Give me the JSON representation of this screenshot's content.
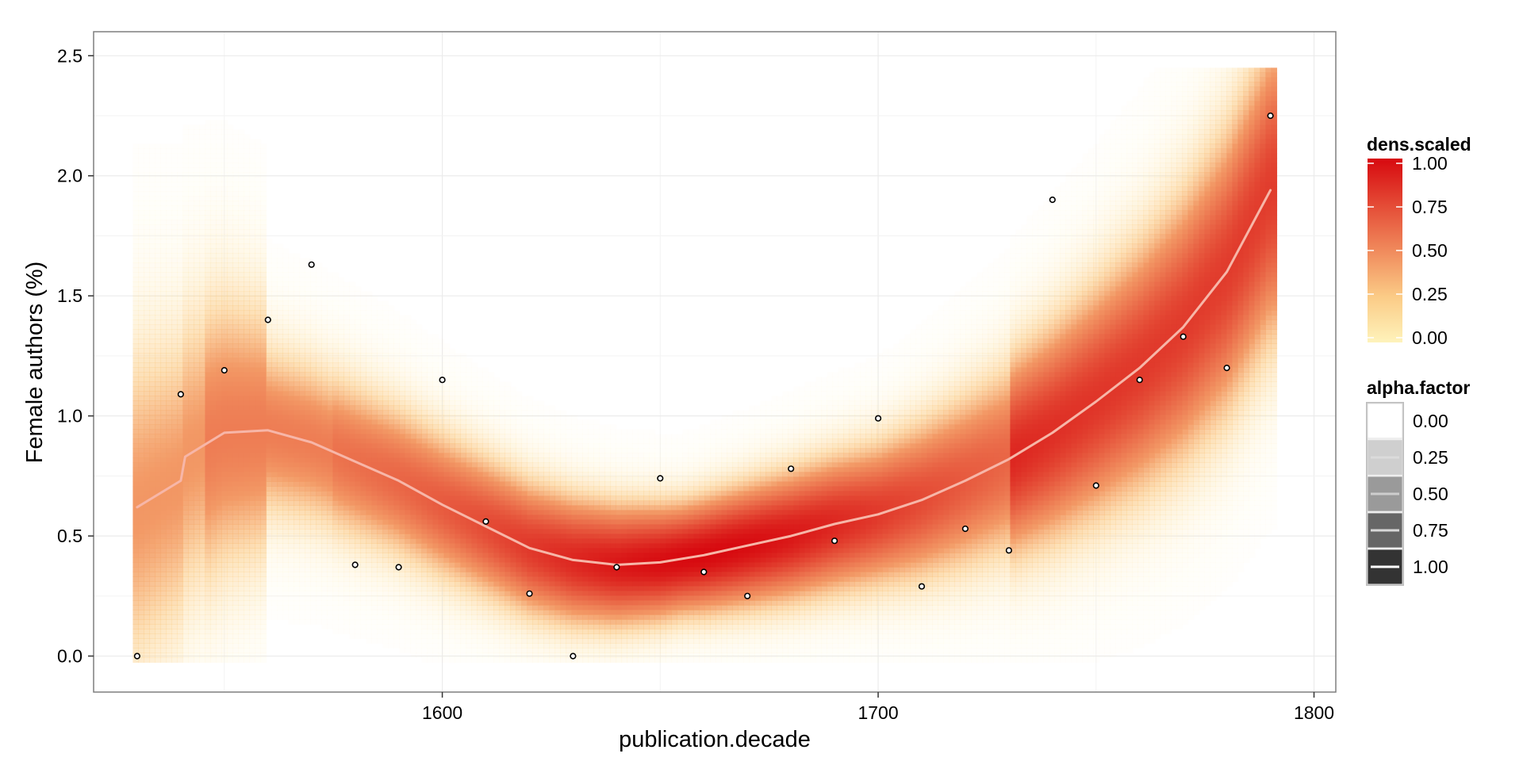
{
  "chart_data": {
    "type": "scatter",
    "title": "",
    "xlabel": "publication.decade",
    "ylabel": "Female authors (%)",
    "xlim": [
      1520,
      1805
    ],
    "ylim": [
      -0.15,
      2.6
    ],
    "xticks": [
      1600,
      1700,
      1800
    ],
    "xtick_labels": [
      "1600",
      "1700",
      "1800"
    ],
    "yticks": [
      0.0,
      0.5,
      1.0,
      1.5,
      2.0,
      2.5
    ],
    "ytick_labels": [
      "0.0",
      "0.5",
      "1.0",
      "1.5",
      "2.0",
      "2.5"
    ],
    "grid": true,
    "points": [
      {
        "x": 1530,
        "y": 0.0
      },
      {
        "x": 1540,
        "y": 1.09
      },
      {
        "x": 1550,
        "y": 1.19
      },
      {
        "x": 1560,
        "y": 1.4
      },
      {
        "x": 1570,
        "y": 1.63
      },
      {
        "x": 1580,
        "y": 0.38
      },
      {
        "x": 1590,
        "y": 0.37
      },
      {
        "x": 1600,
        "y": 1.15
      },
      {
        "x": 1610,
        "y": 0.56
      },
      {
        "x": 1620,
        "y": 0.26
      },
      {
        "x": 1630,
        "y": 0.0
      },
      {
        "x": 1640,
        "y": 0.37
      },
      {
        "x": 1650,
        "y": 0.74
      },
      {
        "x": 1660,
        "y": 0.35
      },
      {
        "x": 1670,
        "y": 0.25
      },
      {
        "x": 1680,
        "y": 0.78
      },
      {
        "x": 1690,
        "y": 0.48
      },
      {
        "x": 1700,
        "y": 0.99
      },
      {
        "x": 1710,
        "y": 0.29
      },
      {
        "x": 1720,
        "y": 0.53
      },
      {
        "x": 1730,
        "y": 0.44
      },
      {
        "x": 1740,
        "y": 1.9
      },
      {
        "x": 1750,
        "y": 0.71
      },
      {
        "x": 1760,
        "y": 1.15
      },
      {
        "x": 1770,
        "y": 1.33
      },
      {
        "x": 1780,
        "y": 1.2
      },
      {
        "x": 1790,
        "y": 2.25
      }
    ],
    "smooth_line": [
      {
        "x": 1530,
        "y": 0.62
      },
      {
        "x": 1540,
        "y": 0.73
      },
      {
        "x": 1541,
        "y": 0.83
      },
      {
        "x": 1550,
        "y": 0.93
      },
      {
        "x": 1560,
        "y": 0.94
      },
      {
        "x": 1570,
        "y": 0.89
      },
      {
        "x": 1580,
        "y": 0.81
      },
      {
        "x": 1590,
        "y": 0.73
      },
      {
        "x": 1600,
        "y": 0.63
      },
      {
        "x": 1610,
        "y": 0.54
      },
      {
        "x": 1620,
        "y": 0.45
      },
      {
        "x": 1630,
        "y": 0.4
      },
      {
        "x": 1640,
        "y": 0.38
      },
      {
        "x": 1650,
        "y": 0.39
      },
      {
        "x": 1660,
        "y": 0.42
      },
      {
        "x": 1670,
        "y": 0.46
      },
      {
        "x": 1680,
        "y": 0.5
      },
      {
        "x": 1690,
        "y": 0.55
      },
      {
        "x": 1700,
        "y": 0.59
      },
      {
        "x": 1710,
        "y": 0.65
      },
      {
        "x": 1720,
        "y": 0.73
      },
      {
        "x": 1730,
        "y": 0.82
      },
      {
        "x": 1740,
        "y": 0.93
      },
      {
        "x": 1750,
        "y": 1.06
      },
      {
        "x": 1760,
        "y": 1.2
      },
      {
        "x": 1770,
        "y": 1.37
      },
      {
        "x": 1780,
        "y": 1.6
      },
      {
        "x": 1790,
        "y": 1.94
      }
    ],
    "density_band": {
      "columns_x_range": [
        1529,
        1791
      ],
      "bottom_y": -0.02,
      "top_y": 2.45
    },
    "legends": [
      {
        "title": "dens.scaled",
        "type": "colorbar",
        "labels": [
          "1.00",
          "0.75",
          "0.50",
          "0.25",
          "0.00"
        ],
        "values": [
          1.0,
          0.75,
          0.5,
          0.25,
          0.0
        ],
        "colors": {
          "low": "#fef3bb",
          "mid": "#f08a5c",
          "high": "#d7090f"
        }
      },
      {
        "title": "alpha.factor",
        "type": "keys",
        "labels": [
          "0.00",
          "0.25",
          "0.50",
          "0.75",
          "1.00"
        ],
        "values": [
          0.0,
          0.25,
          0.5,
          0.75,
          1.0
        ]
      }
    ],
    "colors": {
      "panel_border": "#7f7f7f",
      "grid": "#ebebeb",
      "smooth_line": "#f7b6a8",
      "point_stroke": "#000000",
      "point_fill": "#ffffff"
    }
  }
}
